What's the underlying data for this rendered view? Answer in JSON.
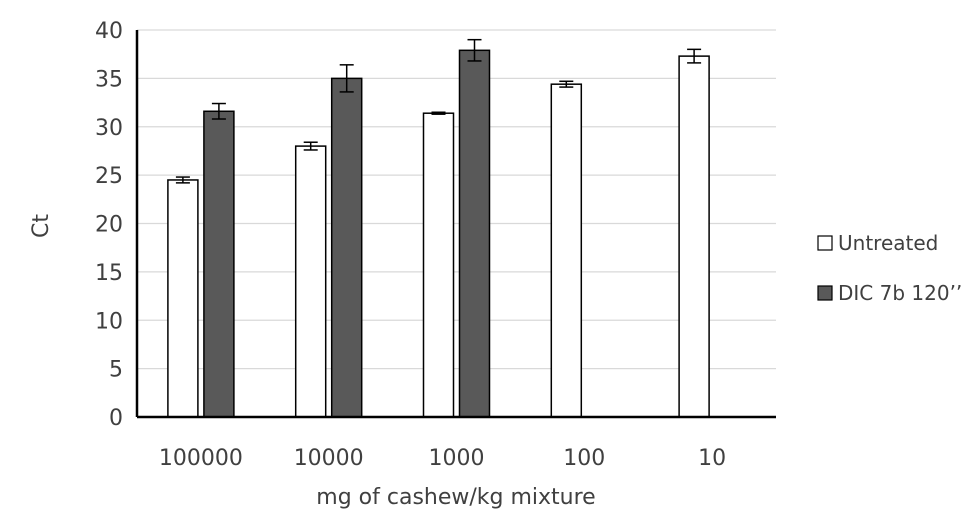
{
  "chart_data": {
    "type": "bar",
    "title": "",
    "xlabel": "mg of cashew/kg mixture",
    "ylabel": "Ct",
    "categories": [
      "100000",
      "10000",
      "1000",
      "100",
      "10"
    ],
    "ylim": [
      0,
      40
    ],
    "yticks": [
      0,
      5,
      10,
      15,
      20,
      25,
      30,
      35,
      40
    ],
    "grid": true,
    "legend_position": "right",
    "series": [
      {
        "name": "Untreated",
        "color": "#ffffff",
        "values": [
          24.5,
          28.0,
          31.4,
          34.4,
          37.3
        ],
        "errors": [
          0.3,
          0.4,
          0.1,
          0.3,
          0.7
        ]
      },
      {
        "name": "DIC 7b 120’’",
        "color": "#595959",
        "values": [
          31.6,
          35.0,
          37.9,
          null,
          null
        ],
        "errors": [
          0.8,
          1.4,
          1.1,
          null,
          null
        ]
      }
    ]
  }
}
